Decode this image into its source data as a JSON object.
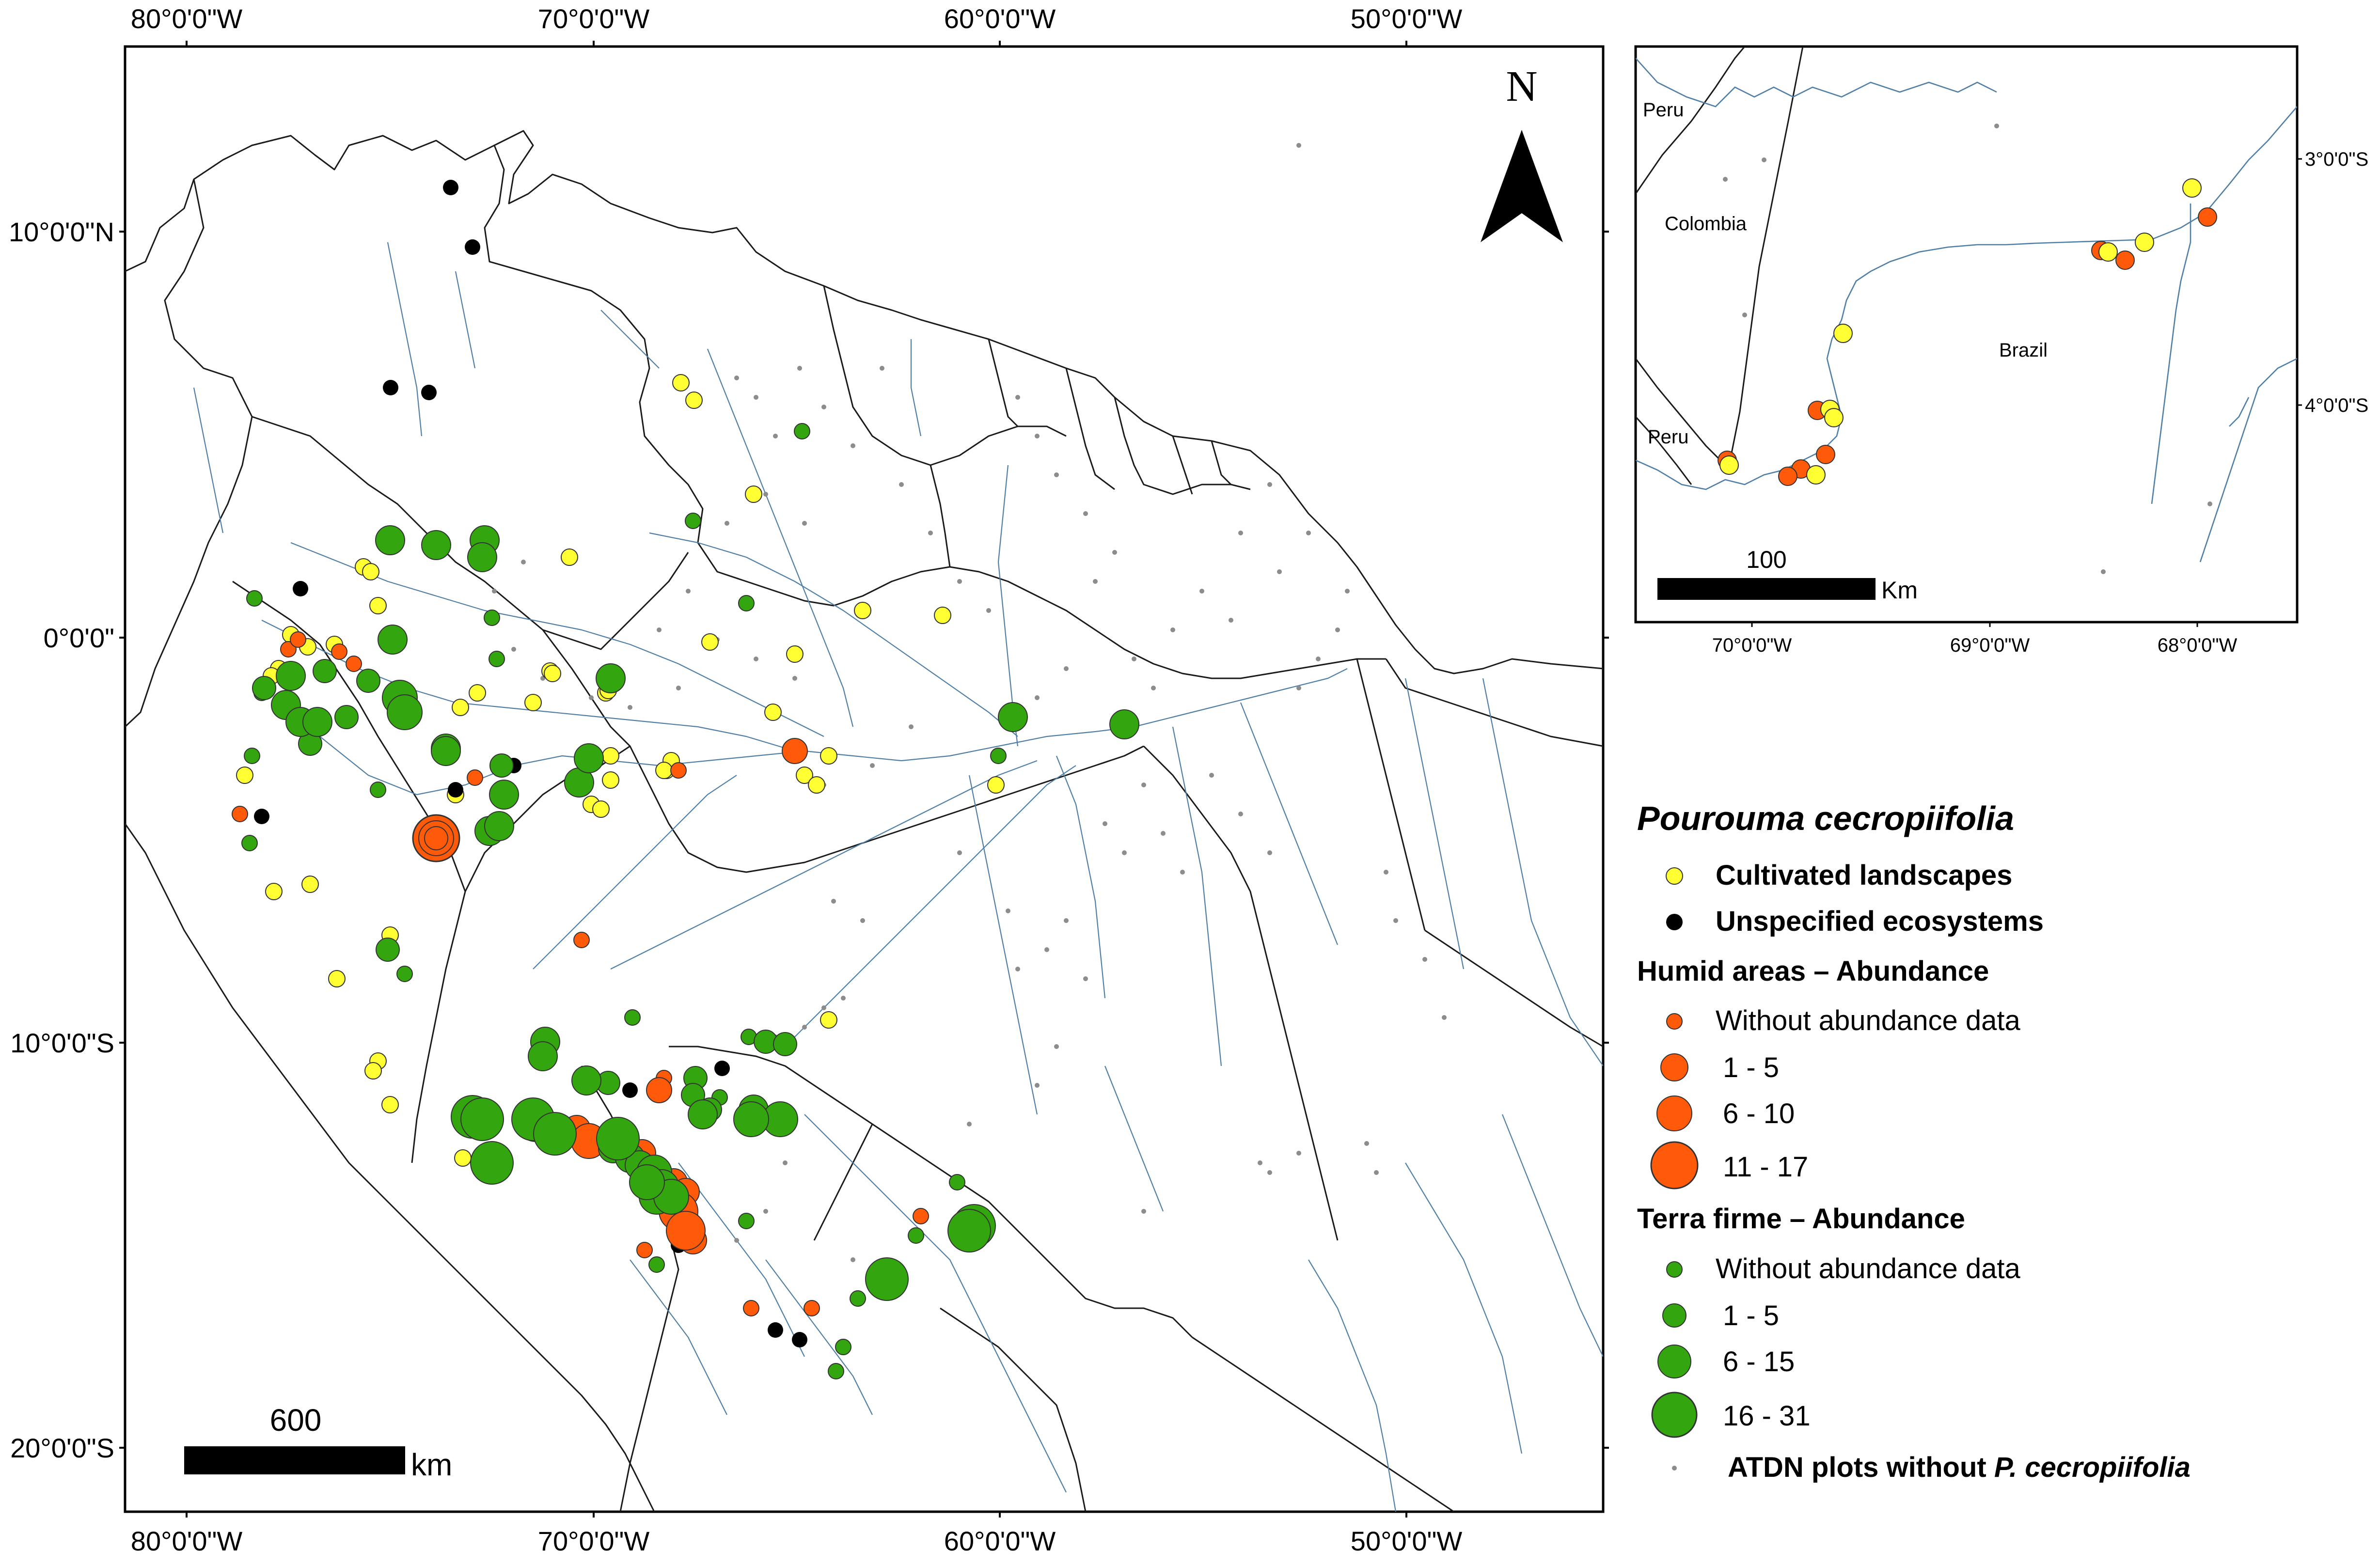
{
  "main_map": {
    "top_labels": [
      "80°0'0\"W",
      "70°0'0\"W",
      "60°0'0\"W",
      "50°0'0\"W"
    ],
    "bottom_labels": [
      "80°0'0\"W",
      "70°0'0\"W",
      "60°0'0\"W",
      "50°0'0\"W"
    ],
    "left_labels": [
      "10°0'0\"N",
      "0°0'0\"",
      "10°0'0\"S",
      "20°0'0\"S"
    ],
    "north_label": "N",
    "scale_value": "600",
    "scale_unit": "km"
  },
  "inset_map": {
    "country_labels": [
      "Peru",
      "Colombia",
      "Brazil",
      "Peru"
    ],
    "right_labels": [
      "3°0'0\"S",
      "4°0'0\"S"
    ],
    "bottom_labels": [
      "70°0'0\"W",
      "69°0'0\"W",
      "68°0'0\"W"
    ],
    "scale_value": "100",
    "scale_unit": "Km"
  },
  "legend": {
    "title": "Pourouma cecropiifolia",
    "cultivated": "Cultivated landscapes",
    "unspecified": "Unspecified ecosystems",
    "humid_heading": "Humid areas – Abundance",
    "humid_classes": [
      "Without abundance data",
      "1 - 5",
      "6 - 10",
      "11 - 17"
    ],
    "terra_heading": "Terra firme – Abundance",
    "terra_classes": [
      "Without abundance data",
      "1 - 5",
      "6 - 15",
      "16 - 31"
    ],
    "atdn_prefix": "ATDN plots without ",
    "atdn_species": "P. cecropiifolia"
  },
  "colors": {
    "cultivated": "#ffff33",
    "unspecified": "#000000",
    "humid": "#ff5a0a",
    "terra_firme": "#33a50e",
    "atdn": "#8c8c8c",
    "river": "#4f7fa6",
    "border": "#1a1a1a"
  }
}
